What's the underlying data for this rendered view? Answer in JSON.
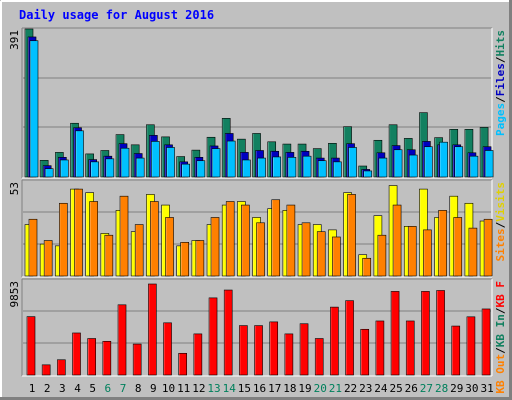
{
  "chart_data": [
    {
      "type": "bar",
      "title": "Daily usage for August 2016",
      "categories": [
        "1",
        "2",
        "3",
        "4",
        "5",
        "6",
        "7",
        "8",
        "9",
        "10",
        "11",
        "12",
        "13",
        "14",
        "15",
        "16",
        "17",
        "18",
        "19",
        "20",
        "21",
        "22",
        "23",
        "24",
        "25",
        "26",
        "27",
        "28",
        "29",
        "30",
        "31"
      ],
      "weekend_days": [
        "6",
        "7",
        "13",
        "14",
        "20",
        "21",
        "27",
        "28"
      ],
      "ymax_label": "391",
      "ylabel_parts": [
        "Pages",
        "/",
        "Files",
        "/",
        "Hits"
      ],
      "series": [
        {
          "name": "Hits",
          "color": "#128060",
          "values": [
            391,
            44,
            65,
            142,
            61,
            70,
            112,
            85,
            138,
            106,
            54,
            71,
            105,
            155,
            100,
            115,
            93,
            87,
            87,
            75,
            89,
            133,
            29,
            97,
            138,
            102,
            170,
            104,
            126,
            126,
            131
          ]
        },
        {
          "name": "Files",
          "color": "#0000c0",
          "values": [
            370,
            30,
            52,
            130,
            46,
            55,
            88,
            62,
            110,
            85,
            40,
            52,
            82,
            115,
            65,
            70,
            68,
            65,
            68,
            50,
            50,
            88,
            20,
            64,
            83,
            72,
            94,
            85,
            85,
            64,
            80
          ]
        },
        {
          "name": "Pages",
          "color": "#00c0ff",
          "values": [
            360,
            22,
            45,
            122,
            40,
            48,
            76,
            50,
            94,
            78,
            34,
            43,
            75,
            95,
            45,
            50,
            53,
            52,
            55,
            43,
            40,
            78,
            16,
            50,
            72,
            58,
            80,
            92,
            80,
            55,
            70
          ]
        }
      ]
    },
    {
      "type": "bar",
      "categories": [
        "1",
        "2",
        "3",
        "4",
        "5",
        "6",
        "7",
        "8",
        "9",
        "10",
        "11",
        "12",
        "13",
        "14",
        "15",
        "16",
        "17",
        "18",
        "19",
        "20",
        "21",
        "22",
        "23",
        "24",
        "25",
        "26",
        "27",
        "28",
        "29",
        "30",
        "31"
      ],
      "ymax_label": "53",
      "ylabel_parts": [
        "Visits",
        "/",
        "Sites"
      ],
      "series": [
        {
          "name": "Visits",
          "color": "#ffff00",
          "values": [
            29,
            18,
            17,
            49,
            47,
            24,
            37,
            25,
            46,
            40,
            17,
            20,
            29,
            40,
            42,
            33,
            38,
            37,
            29,
            29,
            26,
            47,
            12,
            34,
            51,
            28,
            49,
            33,
            45,
            41,
            31
          ]
        },
        {
          "name": "Sites",
          "color": "#ff8000",
          "values": [
            32,
            20,
            41,
            49,
            42,
            23,
            45,
            29,
            42,
            33,
            19,
            20,
            33,
            42,
            40,
            30,
            43,
            40,
            30,
            25,
            22,
            46,
            10,
            23,
            40,
            28,
            26,
            37,
            33,
            27,
            32
          ]
        }
      ]
    },
    {
      "type": "bar",
      "categories": [
        "1",
        "2",
        "3",
        "4",
        "5",
        "6",
        "7",
        "8",
        "9",
        "10",
        "11",
        "12",
        "13",
        "14",
        "15",
        "16",
        "17",
        "18",
        "19",
        "20",
        "21",
        "22",
        "23",
        "24",
        "25",
        "26",
        "27",
        "28",
        "29",
        "30",
        "31"
      ],
      "ymax_label": "9853",
      "ylabel_parts": [
        "KB F",
        "/",
        "KB In",
        "/",
        "KB Out"
      ],
      "series": [
        {
          "name": "KB F",
          "color": "#ff0000",
          "values": [
            6320,
            1100,
            1650,
            4550,
            3950,
            3650,
            7600,
            3350,
            9853,
            5650,
            2350,
            4450,
            8350,
            9200,
            5350,
            5350,
            5750,
            4450,
            5550,
            3950,
            7350,
            8050,
            4950,
            5850,
            9050,
            5850,
            9050,
            9150,
            5300,
            6300,
            7150
          ]
        }
      ]
    }
  ],
  "colors": {
    "background": "#c0c0c0",
    "title": "#0000ff",
    "gridline": "#808080",
    "weekday_label": "#000000",
    "weekend_label": "#00805c"
  }
}
